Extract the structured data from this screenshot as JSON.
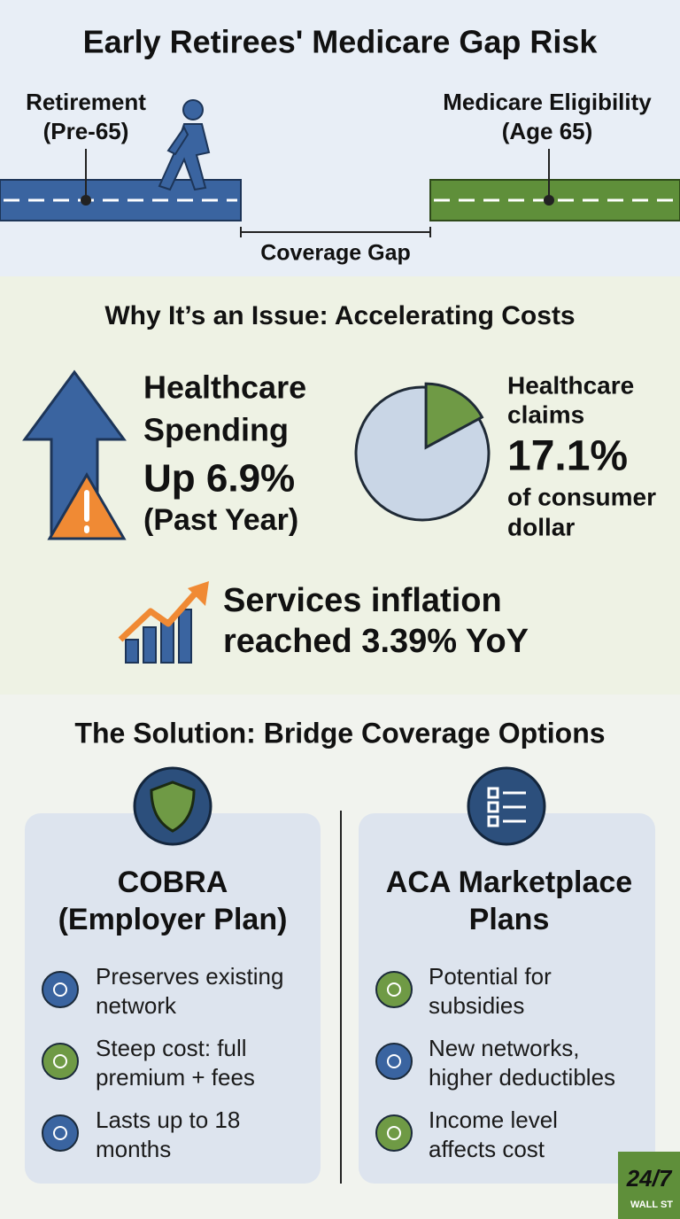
{
  "header": {
    "title": "Early Retirees' Medicare Gap Risk",
    "start_label": [
      "Retirement",
      "(Pre-65)"
    ],
    "end_label": [
      "Medicare Eligibility",
      "(Age 65)"
    ],
    "gap_label": "Coverage Gap"
  },
  "issue": {
    "heading": "Why It’s an Issue: Accelerating Costs",
    "spending": [
      "Healthcare",
      "Spending",
      "Up 6.9%",
      "(Past Year)"
    ],
    "claims": {
      "lines_before": [
        "Healthcare",
        "claims"
      ],
      "share": 17.1,
      "share_label": "17.1%",
      "lines_after": [
        "of consumer",
        "dollar"
      ]
    },
    "inflation": [
      "Services inflation",
      "reached 3.39% YoY"
    ]
  },
  "solution": {
    "heading": "The Solution: Bridge Coverage Options",
    "options": [
      {
        "title": [
          "COBRA",
          "(Employer Plan)"
        ],
        "points": [
          [
            "Preserves existing",
            "network"
          ],
          [
            "Steep cost: full",
            "premium + fees"
          ],
          [
            "Lasts up to 18",
            "months"
          ]
        ]
      },
      {
        "title": [
          "ACA Marketplace",
          "Plans"
        ],
        "points": [
          [
            "Potential for",
            "subsidies"
          ],
          [
            "New networks,",
            "higher deductibles"
          ],
          [
            "Income level",
            "affects cost"
          ]
        ]
      }
    ]
  },
  "logo": {
    "top": "24/7",
    "bottom": "WALL ST"
  }
}
